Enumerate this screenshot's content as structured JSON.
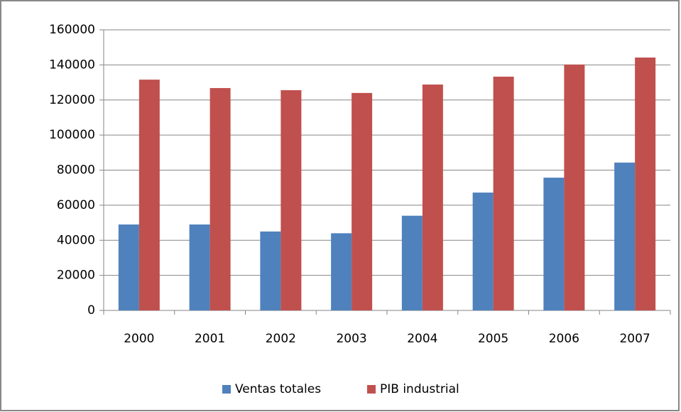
{
  "chart_data": {
    "type": "bar",
    "categories": [
      "2000",
      "2001",
      "2002",
      "2003",
      "2004",
      "2005",
      "2006",
      "2007"
    ],
    "series": [
      {
        "name": "Ventas totales",
        "color": "#4f81bd",
        "values": [
          49000,
          49000,
          45000,
          44000,
          54000,
          67200,
          75700,
          84300
        ]
      },
      {
        "name": "PIB industrial",
        "color": "#c0504d",
        "values": [
          131600,
          126800,
          125600,
          124000,
          128800,
          133300,
          140200,
          144200
        ]
      }
    ],
    "ylim": [
      0,
      160000
    ],
    "yticks": [
      0,
      20000,
      40000,
      60000,
      80000,
      100000,
      120000,
      140000,
      160000
    ],
    "grid": true,
    "legend": "bottom"
  }
}
